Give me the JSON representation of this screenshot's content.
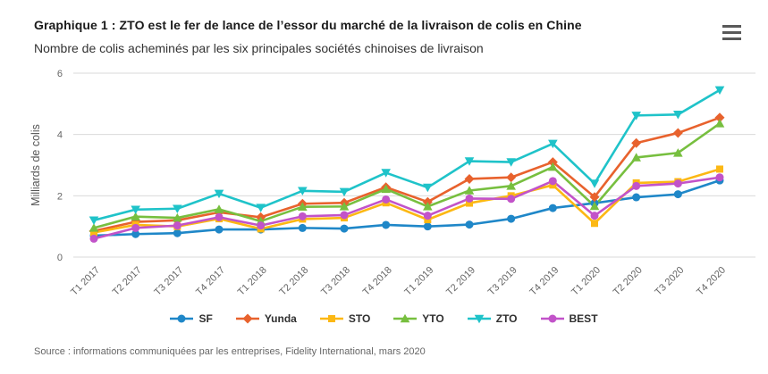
{
  "header": {
    "title": "Graphique 1 : ZTO est le fer de lance de l’essor du marché de la livraison de colis en Chine",
    "subtitle": "Nombre de colis acheminés par les six principales sociétés chinoises de livraison",
    "menu_icon": "hamburger-icon"
  },
  "chart_data": {
    "type": "line",
    "title": "Graphique 1 : ZTO est le fer de lance de l’essor du marché de la livraison de colis en Chine",
    "subtitle": "Nombre de colis acheminés par les six principales sociétés chinoises de livraison",
    "x": [
      "T1 2017",
      "T2 2017",
      "T3 2017",
      "T4 2017",
      "T1 2018",
      "T2 2018",
      "T3 2018",
      "T4 2018",
      "T1 2019",
      "T2 2019",
      "T3 2019",
      "T4 2019",
      "T1 2020",
      "T2 2020",
      "T3 2020",
      "T4 2020"
    ],
    "xlabel": "",
    "ylabel": "Milliards de colis",
    "ylim": [
      0,
      6
    ],
    "y_ticks": [
      0,
      2,
      4,
      6
    ],
    "grid": "horizontal-only",
    "legend_position": "bottom",
    "series": [
      {
        "name": "SF",
        "color": "#1f87c8",
        "marker": "circle",
        "values": [
          0.7,
          0.75,
          0.78,
          0.9,
          0.9,
          0.95,
          0.93,
          1.05,
          1.0,
          1.06,
          1.25,
          1.6,
          1.76,
          1.95,
          2.05,
          2.5
        ]
      },
      {
        "name": "Yunda",
        "color": "#e8622d",
        "marker": "diamond",
        "values": [
          0.85,
          1.15,
          1.2,
          1.46,
          1.3,
          1.74,
          1.77,
          2.28,
          1.8,
          2.55,
          2.6,
          3.1,
          1.96,
          3.72,
          4.05,
          4.55
        ]
      },
      {
        "name": "STO",
        "color": "#fcb814",
        "marker": "square",
        "values": [
          0.8,
          1.05,
          1.0,
          1.25,
          0.92,
          1.24,
          1.28,
          1.77,
          1.22,
          1.76,
          2.0,
          2.35,
          1.1,
          2.42,
          2.46,
          2.87
        ]
      },
      {
        "name": "YTO",
        "color": "#77bf3f",
        "marker": "triangle-up",
        "values": [
          0.95,
          1.32,
          1.28,
          1.56,
          1.17,
          1.64,
          1.65,
          2.22,
          1.65,
          2.17,
          2.32,
          2.94,
          1.66,
          3.25,
          3.4,
          4.36
        ]
      },
      {
        "name": "ZTO",
        "color": "#1fc3c9",
        "marker": "triangle-down",
        "values": [
          1.2,
          1.55,
          1.58,
          2.07,
          1.61,
          2.16,
          2.13,
          2.75,
          2.27,
          3.13,
          3.1,
          3.7,
          2.4,
          4.62,
          4.65,
          5.45
        ]
      },
      {
        "name": "BEST",
        "color": "#c253c9",
        "marker": "circle",
        "values": [
          0.6,
          0.95,
          1.03,
          1.3,
          1.03,
          1.33,
          1.37,
          1.88,
          1.35,
          1.91,
          1.9,
          2.48,
          1.35,
          2.32,
          2.4,
          2.6
        ]
      }
    ]
  },
  "source": "Source : informations communiquées par les entreprises, Fidelity International, mars 2020",
  "colors": {
    "grid": "#d9d9d9",
    "axis_text": "#666666",
    "axis_title_text": "#555555",
    "title_text": "#1a1a1a",
    "subtitle_text": "#333333",
    "menu_icon": "#595959",
    "background": "#ffffff"
  }
}
